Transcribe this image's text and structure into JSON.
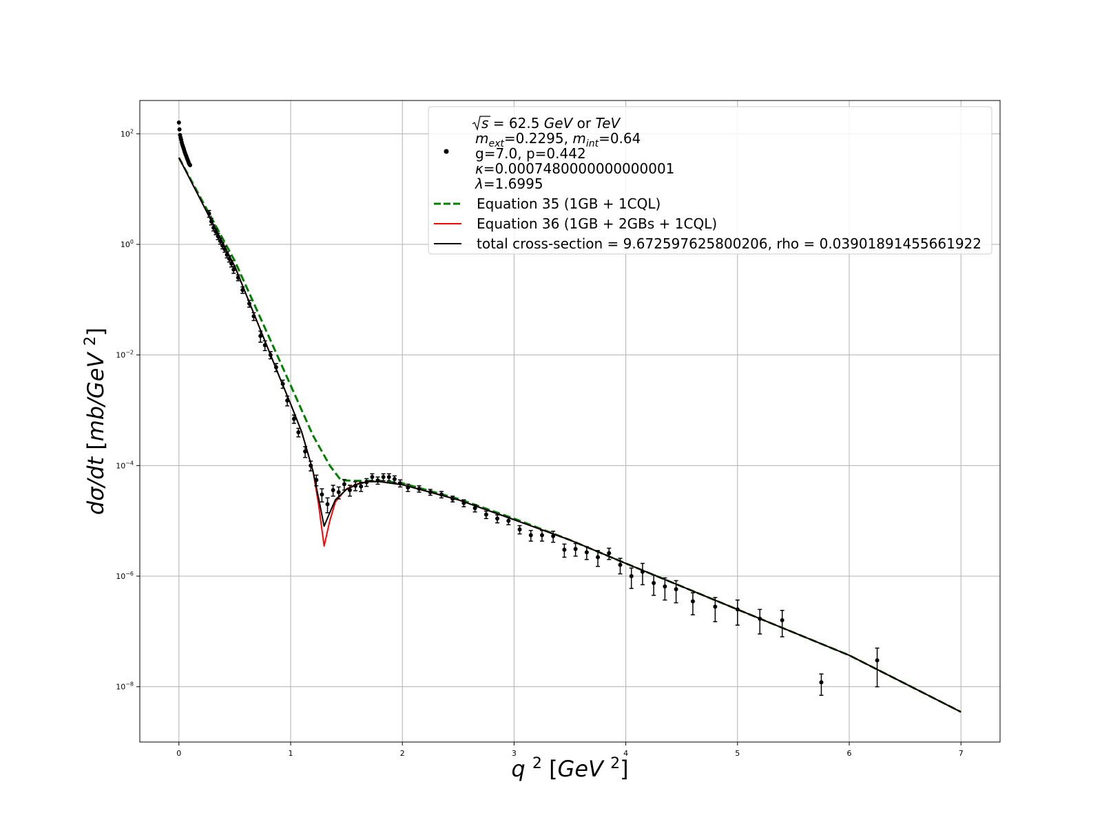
{
  "chart_data": {
    "type": "scatter",
    "x_label": {
      "var": "q",
      "sup": "2",
      "unit_open": "[",
      "unit": "GeV",
      "unit_sup": "2",
      "unit_close": "]"
    },
    "y_label": {
      "var": "dσ/dt",
      "unit_open": "[",
      "unit": "mb/GeV",
      "unit_sup": "2",
      "unit_close": "]"
    },
    "x_scale": "linear",
    "y_scale": "log",
    "xlim": [
      -0.35,
      7.35
    ],
    "ylim": [
      1e-09,
      400
    ],
    "x_ticks": [
      0,
      1,
      2,
      3,
      4,
      5,
      6,
      7
    ],
    "y_ticks": [
      {
        "value": 100,
        "base": "10",
        "exp": "2"
      },
      {
        "value": 1,
        "base": "10",
        "exp": "0"
      },
      {
        "value": 0.01,
        "base": "10",
        "exp": "−2"
      },
      {
        "value": 0.0001,
        "base": "10",
        "exp": "−4"
      },
      {
        "value": 1e-06,
        "base": "10",
        "exp": "−6"
      },
      {
        "value": 1e-08,
        "base": "10",
        "exp": "−8"
      }
    ],
    "grid": true,
    "legend_position": "top-right",
    "legend": {
      "data_entry_lines": [
        {
          "id": "l1",
          "parts": [
            {
              "t": "s",
              "sqrt": true,
              "italic": true
            },
            {
              "t": " = 62.5 "
            },
            {
              "t": "GeV",
              "italic": true
            },
            {
              "t": " or "
            },
            {
              "t": "TeV",
              "italic": true
            }
          ]
        },
        {
          "id": "l2",
          "parts": [
            {
              "t": "m",
              "italic": true
            },
            {
              "t": "ext",
              "italic": true,
              "sub": true
            },
            {
              "t": "=0.2295, "
            },
            {
              "t": "m",
              "italic": true
            },
            {
              "t": "int",
              "italic": true,
              "sub": true
            },
            {
              "t": "=0.64"
            }
          ]
        },
        {
          "id": "l3",
          "parts": [
            {
              "t": "g=7.0, p=0.442"
            }
          ]
        },
        {
          "id": "l4",
          "parts": [
            {
              "t": "κ",
              "italic": true
            },
            {
              "t": "=0.0007480000000000001"
            }
          ]
        },
        {
          "id": "l5",
          "parts": [
            {
              "t": "λ",
              "italic": true
            },
            {
              "t": "=1.6995"
            }
          ]
        }
      ],
      "entries": [
        {
          "label": "Equation 35 (1GB + 1CQL)",
          "color": "#008000",
          "style": "dashed"
        },
        {
          "label": "Equation 36 (1GB + 2GBs + 1CQL)",
          "color": "#ff0000",
          "style": "solid"
        },
        {
          "label": "total cross-section = 9.672597625800206, rho = 0.03901891455661922",
          "color": "#000000",
          "style": "solid"
        }
      ]
    },
    "series": [
      {
        "kind": "points",
        "color": "#000000",
        "x": [
          0.0,
          0.005,
          0.01,
          0.015,
          0.02,
          0.025,
          0.03,
          0.035,
          0.04,
          0.045,
          0.05,
          0.055,
          0.06,
          0.065,
          0.07,
          0.075,
          0.08,
          0.085,
          0.09,
          0.095,
          0.1
        ],
        "y": [
          160,
          120,
          95,
          85,
          78,
          70,
          64,
          60,
          56,
          52,
          48,
          45,
          42,
          40,
          37,
          35,
          33,
          31,
          29,
          28,
          27
        ]
      },
      {
        "kind": "errorbar_points",
        "color": "#000000",
        "points": [
          [
            0.27,
            3.6,
            0.5
          ],
          [
            0.29,
            2.6,
            0.35
          ],
          [
            0.31,
            2.0,
            0.25
          ],
          [
            0.33,
            1.7,
            0.2
          ],
          [
            0.35,
            1.4,
            0.18
          ],
          [
            0.37,
            1.15,
            0.14
          ],
          [
            0.39,
            0.95,
            0.12
          ],
          [
            0.41,
            0.82,
            0.1
          ],
          [
            0.43,
            0.65,
            0.08
          ],
          [
            0.45,
            0.55,
            0.07
          ],
          [
            0.47,
            0.45,
            0.06
          ],
          [
            0.49,
            0.35,
            0.05
          ],
          [
            0.53,
            0.25,
            0.03
          ],
          [
            0.57,
            0.15,
            0.02
          ],
          [
            0.63,
            0.085,
            0.012
          ],
          [
            0.67,
            0.05,
            0.008
          ],
          [
            0.73,
            0.022,
            0.005
          ],
          [
            0.77,
            0.015,
            0.003
          ],
          [
            0.82,
            0.01,
            0.0015
          ],
          [
            0.87,
            0.006,
            0.001
          ],
          [
            0.93,
            0.003,
            0.0005
          ],
          [
            0.97,
            0.0015,
            0.0003
          ],
          [
            1.03,
            0.0007,
            0.00012
          ],
          [
            1.07,
            0.0004,
            7e-05
          ],
          [
            1.13,
            0.00018,
            4e-05
          ],
          [
            1.18,
            0.0001,
            2e-05
          ],
          [
            1.23,
            5.5e-05,
            1.2e-05
          ],
          [
            1.28,
            3e-05,
            8e-06
          ],
          [
            1.33,
            2e-05,
            6e-06
          ],
          [
            1.38,
            3.6e-05,
            8e-06
          ],
          [
            1.43,
            3.3e-05,
            8e-06
          ],
          [
            1.48,
            4.6e-05,
            1e-05
          ],
          [
            1.53,
            3.6e-05,
            8e-06
          ],
          [
            1.58,
            4.3e-05,
            8e-06
          ],
          [
            1.63,
            4.2e-05,
            8e-06
          ],
          [
            1.68,
            5e-05,
            8e-06
          ],
          [
            1.73,
            6.2e-05,
            9e-06
          ],
          [
            1.78,
            5.4e-05,
            8e-06
          ],
          [
            1.83,
            6.2e-05,
            9e-06
          ],
          [
            1.88,
            6.2e-05,
            9e-06
          ],
          [
            1.93,
            5.7e-05,
            8e-06
          ],
          [
            1.98,
            4.8e-05,
            7e-06
          ],
          [
            2.05,
            4e-05,
            6e-06
          ],
          [
            2.15,
            3.8e-05,
            5e-06
          ],
          [
            2.25,
            3.3e-05,
            4e-06
          ],
          [
            2.35,
            3e-05,
            4e-06
          ],
          [
            2.45,
            2.5e-05,
            3e-06
          ],
          [
            2.55,
            2.1e-05,
            3e-06
          ],
          [
            2.65,
            1.7e-05,
            2.5e-06
          ],
          [
            2.75,
            1.3e-05,
            2e-06
          ],
          [
            2.85,
            1.1e-05,
            1.8e-06
          ],
          [
            2.95,
            1e-05,
            1.5e-06
          ],
          [
            3.05,
            7e-06,
            1.2e-06
          ],
          [
            3.15,
            5.5e-06,
            1.2e-06
          ],
          [
            3.25,
            5.5e-06,
            1.2e-06
          ],
          [
            3.35,
            5.3e-06,
            1.2e-06
          ],
          [
            3.45,
            3e-06,
            8e-07
          ],
          [
            3.55,
            3.1e-06,
            8e-07
          ],
          [
            3.65,
            2.7e-06,
            7e-07
          ],
          [
            3.75,
            2.2e-06,
            7e-07
          ],
          [
            3.85,
            2.6e-06,
            6e-07
          ],
          [
            3.95,
            1.6e-06,
            5e-07
          ],
          [
            4.05,
            1e-06,
            4e-07
          ],
          [
            4.15,
            1.2e-06,
            5e-07
          ],
          [
            4.25,
            7.5e-07,
            3e-07
          ],
          [
            4.35,
            6.5e-07,
            2.8e-07
          ],
          [
            4.45,
            5.8e-07,
            2.5e-07
          ],
          [
            4.6,
            3.5e-07,
            1.5e-07
          ],
          [
            4.8,
            2.8e-07,
            1.3e-07
          ],
          [
            5.0,
            2.5e-07,
            1.2e-07
          ],
          [
            5.2,
            1.7e-07,
            8e-08
          ],
          [
            5.4,
            1.6e-07,
            8e-08
          ],
          [
            5.75,
            1.2e-08,
            5e-09
          ],
          [
            6.25,
            3e-08,
            2e-08
          ]
        ]
      },
      {
        "kind": "curve",
        "name": "Equation 35 (1GB + 1CQL)",
        "color": "#008000",
        "style": "dashed",
        "x": [
          0.0,
          0.5,
          0.9,
          1.2,
          1.35,
          1.45,
          1.6,
          1.8,
          2.0,
          2.5,
          3.0,
          3.5,
          4.0,
          5.0,
          6.0,
          7.0
        ],
        "y": [
          37.0,
          0.5,
          0.008,
          0.00035,
          0.0001,
          5.4e-05,
          5.3e-05,
          5.3e-05,
          4.8e-05,
          2.5e-05,
          1.1e-05,
          4.5e-06,
          1.7e-06,
          2.5e-07,
          3.7e-08,
          3.5e-09
        ]
      },
      {
        "kind": "curve",
        "name": "Equation 36 (1GB + 2GBs + 1CQL)",
        "color": "#ff0000",
        "style": "solid",
        "x": [
          0.0,
          0.5,
          0.9,
          1.0,
          1.1,
          1.2,
          1.25,
          1.3,
          1.35,
          1.4,
          1.5,
          1.6,
          1.7,
          1.8,
          2.0,
          2.5,
          3.0,
          3.5,
          4.0,
          5.0,
          6.0,
          7.0
        ],
        "y": [
          37.0,
          0.4,
          0.004,
          0.0013,
          0.0004,
          8e-05,
          2e-05,
          3.5e-06,
          1e-05,
          2.2e-05,
          3.8e-05,
          4.7e-05,
          5.2e-05,
          5.1e-05,
          4.5e-05,
          2.4e-05,
          1.05e-05,
          4.5e-06,
          1.7e-06,
          2.5e-07,
          3.7e-08,
          3.5e-09
        ]
      },
      {
        "kind": "curve",
        "name": "total cross-section = 9.672597625800206, rho = 0.03901891455661922",
        "color": "#000000",
        "style": "solid",
        "x": [
          0.0,
          0.5,
          0.9,
          1.0,
          1.1,
          1.2,
          1.25,
          1.3,
          1.35,
          1.4,
          1.5,
          1.6,
          1.7,
          1.8,
          2.0,
          2.5,
          3.0,
          3.5,
          4.0,
          5.0,
          6.0,
          7.0
        ],
        "y": [
          37.0,
          0.4,
          0.004,
          0.0013,
          0.0004,
          8e-05,
          2.6e-05,
          8e-06,
          1.4e-05,
          2.4e-05,
          3.7e-05,
          4.6e-05,
          5.1e-05,
          5.1e-05,
          4.5e-05,
          2.4e-05,
          1.05e-05,
          4.5e-06,
          1.7e-06,
          2.5e-07,
          3.7e-08,
          3.5e-09
        ]
      }
    ]
  }
}
